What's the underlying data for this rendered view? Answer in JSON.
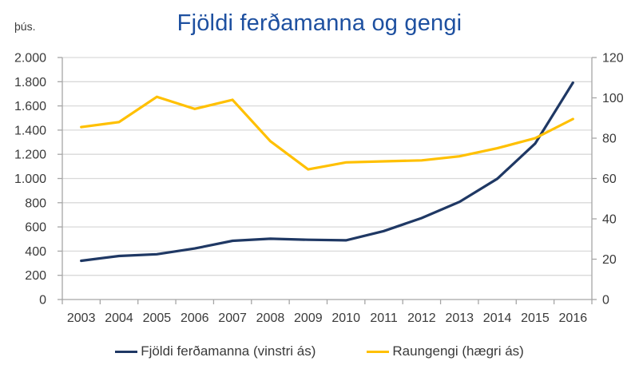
{
  "chart_data": {
    "type": "line",
    "title": "Fjöldi ferðamanna og gengi",
    "categories": [
      "2003",
      "2004",
      "2005",
      "2006",
      "2007",
      "2008",
      "2009",
      "2010",
      "2011",
      "2012",
      "2013",
      "2014",
      "2015",
      "2016"
    ],
    "series": [
      {
        "name": "Fjöldi ferðamanna (vinstri ás)",
        "axis": "left",
        "color": "#1f3864",
        "values": [
          320,
          360,
          374,
          422,
          485,
          502,
          494,
          489,
          566,
          673,
          807,
          998,
          1289,
          1792
        ]
      },
      {
        "name": "Raungengi (hægri ás)",
        "axis": "right",
        "color": "#ffc000",
        "values": [
          85.5,
          88,
          100.5,
          94.5,
          99,
          78.5,
          64.5,
          68,
          68.5,
          69,
          71,
          75,
          80,
          89.5
        ]
      }
    ],
    "left_axis": {
      "unit": "þús.",
      "min": 0,
      "max": 2000,
      "step": 200,
      "labels": [
        "0",
        "200",
        "400",
        "600",
        "800",
        "1.000",
        "1.200",
        "1.400",
        "1.600",
        "1.800",
        "2.000"
      ]
    },
    "right_axis": {
      "min": 0,
      "max": 120,
      "step": 20,
      "labels": [
        "0",
        "20",
        "40",
        "60",
        "80",
        "100",
        "120"
      ]
    },
    "grid": true,
    "legend_position": "bottom",
    "colors": {
      "title": "#1e50a0",
      "gridline": "#d9d9d9",
      "axis_line": "#a6a6a6",
      "text": "#3a3a3a"
    }
  }
}
